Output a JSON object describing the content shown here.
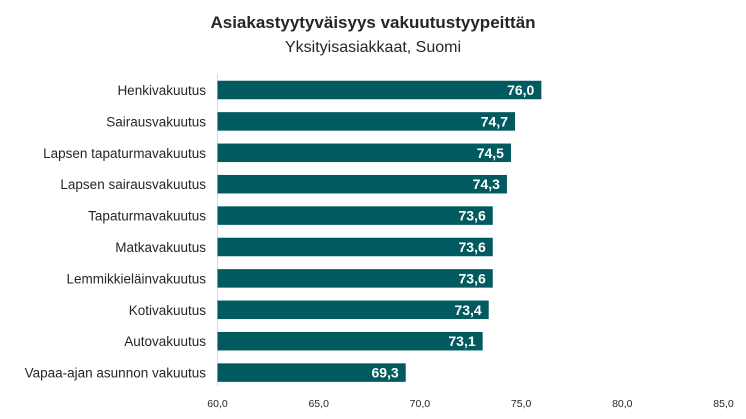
{
  "chart_data": {
    "type": "bar",
    "orientation": "horizontal",
    "title": "Asiakastyytyväisyys vakuutustyypeittän",
    "subtitle": "Yksityisasiakkaat, Suomi",
    "categories": [
      "Henkivakuutus",
      "Sairausvakuutus",
      "Lapsen tapaturmavakuutus",
      "Lapsen sairausvakuutus",
      "Tapaturmavakuutus",
      "Matkavakuutus",
      "Lemmikkieläinvakuutus",
      "Kotivakuutus",
      "Autovakuutus",
      "Vapaa-ajan asunnon vakuutus"
    ],
    "values": [
      76.0,
      74.7,
      74.5,
      74.3,
      73.6,
      73.6,
      73.6,
      73.4,
      73.1,
      69.3
    ],
    "data_labels": [
      "76,0",
      "74,7",
      "74,5",
      "74,3",
      "73,6",
      "73,6",
      "73,6",
      "73,4",
      "73,1",
      "69,3"
    ],
    "xlim": [
      60,
      85
    ],
    "x_ticks": [
      60,
      65,
      70,
      75,
      80,
      85
    ],
    "x_tick_labels": [
      "60,0",
      "65,0",
      "70,0",
      "75,0",
      "80,0",
      "85,0"
    ],
    "xlabel": "",
    "ylabel": "",
    "grid": false,
    "legend": "none",
    "bar_color": "#005a5f"
  }
}
